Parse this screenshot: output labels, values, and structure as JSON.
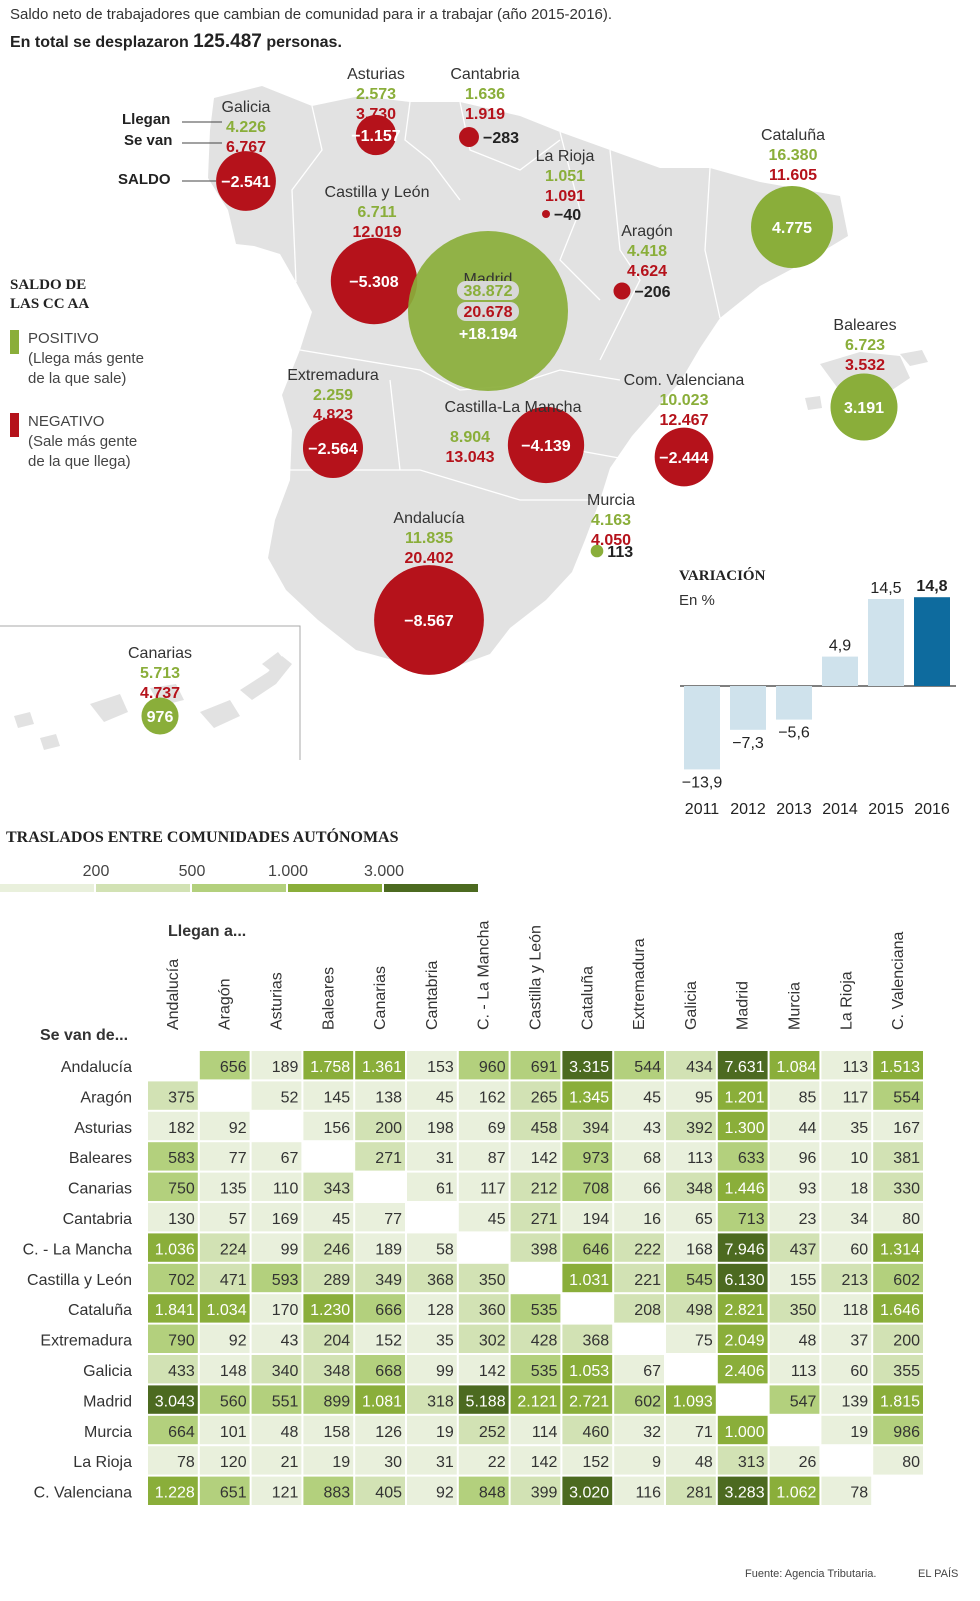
{
  "header": {
    "subtitle": "Saldo neto de trabajadores que cambian de comunidad para ir a trabajar (año 2015-2016).",
    "total_prefix": "En total se desplazaron",
    "total_value": "125.487",
    "total_suffix": "personas."
  },
  "colors": {
    "positive": "#8aae3a",
    "negative": "#b5121b",
    "land": "#e2e2e2",
    "bar_light": "#cfe2ec",
    "bar_highlight": "#0e6b9e"
  },
  "map_key": {
    "llegan": "Llegan",
    "se_van": "Se van",
    "saldo": "SALDO"
  },
  "legend": {
    "title_line1": "SALDO DE",
    "title_line2": "LAS CC AA",
    "positive_lines": [
      "POSITIVO",
      "(Llega más gente",
      "de la que sale)"
    ],
    "negative_lines": [
      "NEGATIVO",
      "(Sale más gente",
      "de la que llega)"
    ]
  },
  "regions": [
    {
      "name": "Galicia",
      "in": "4.226",
      "out": "6.767",
      "saldo": "−2.541",
      "value": -2541
    },
    {
      "name": "Asturias",
      "in": "2.573",
      "out": "3.730",
      "saldo": "−1.157",
      "value": -1157
    },
    {
      "name": "Cantabria",
      "in": "1.636",
      "out": "1.919",
      "saldo": "−283",
      "value": -283
    },
    {
      "name": "La Rioja",
      "in": "1.051",
      "out": "1.091",
      "saldo": "−40",
      "value": -40
    },
    {
      "name": "Cataluña",
      "in": "16.380",
      "out": "11.605",
      "saldo": "4.775",
      "value": 4775
    },
    {
      "name": "Castilla y León",
      "in": "6.711",
      "out": "12.019",
      "saldo": "−5.308",
      "value": -5308
    },
    {
      "name": "Aragón",
      "in": "4.418",
      "out": "4.624",
      "saldo": "−206",
      "value": -206
    },
    {
      "name": "Madrid",
      "in": "38.872",
      "out": "20.678",
      "saldo": "+18.194",
      "value": 18194
    },
    {
      "name": "Baleares",
      "in": "6.723",
      "out": "3.532",
      "saldo": "3.191",
      "value": 3191
    },
    {
      "name": "Extremadura",
      "in": "2.259",
      "out": "4.823",
      "saldo": "−2.564",
      "value": -2564
    },
    {
      "name": "Castilla-La Mancha",
      "in": "8.904",
      "out": "13.043",
      "saldo": "−4.139",
      "value": -4139
    },
    {
      "name": "Com. Valenciana",
      "in": "10.023",
      "out": "12.467",
      "saldo": "−2.444",
      "value": -2444
    },
    {
      "name": "Murcia",
      "in": "4.163",
      "out": "4.050",
      "saldo": "113",
      "value": 113
    },
    {
      "name": "Andalucía",
      "in": "11.835",
      "out": "20.402",
      "saldo": "−8.567",
      "value": -8567
    },
    {
      "name": "Canarias",
      "in": "5.713",
      "out": "4.737",
      "saldo": "976",
      "value": 976
    }
  ],
  "variation": {
    "title": "VARIACIÓN",
    "subtitle": "En %"
  },
  "scale": {
    "title": "TRASLADOS ENTRE COMUNIDADES AUTÓNOMAS",
    "labels": [
      "200",
      "500",
      "1.000",
      "3.000"
    ],
    "colors": [
      "#e9f0dc",
      "#d2e2b4",
      "#b3d07d",
      "#8aae3a",
      "#4c6a20"
    ]
  },
  "matrix": {
    "col_header": "Llegan a...",
    "row_header": "Se van de...",
    "regions": [
      "Andalucía",
      "Aragón",
      "Asturias",
      "Baleares",
      "Canarias",
      "Cantabria",
      "C. - La Mancha",
      "Castilla y León",
      "Cataluña",
      "Extremadura",
      "Galicia",
      "Madrid",
      "Murcia",
      "La Rioja",
      "C. Valenciana"
    ],
    "rows": [
      [
        "",
        "656",
        "189",
        "1.758",
        "1.361",
        "153",
        "960",
        "691",
        "3.315",
        "544",
        "434",
        "7.631",
        "1.084",
        "113",
        "1.513"
      ],
      [
        "375",
        "",
        "52",
        "145",
        "138",
        "45",
        "162",
        "265",
        "1.345",
        "45",
        "95",
        "1.201",
        "85",
        "117",
        "554"
      ],
      [
        "182",
        "92",
        "",
        "156",
        "200",
        "198",
        "69",
        "458",
        "394",
        "43",
        "392",
        "1.300",
        "44",
        "35",
        "167"
      ],
      [
        "583",
        "77",
        "67",
        "",
        "271",
        "31",
        "87",
        "142",
        "973",
        "68",
        "113",
        "633",
        "96",
        "10",
        "381"
      ],
      [
        "750",
        "135",
        "110",
        "343",
        "",
        "61",
        "117",
        "212",
        "708",
        "66",
        "348",
        "1.446",
        "93",
        "18",
        "330"
      ],
      [
        "130",
        "57",
        "169",
        "45",
        "77",
        "",
        "45",
        "271",
        "194",
        "16",
        "65",
        "713",
        "23",
        "34",
        "80"
      ],
      [
        "1.036",
        "224",
        "99",
        "246",
        "189",
        "58",
        "",
        "398",
        "646",
        "222",
        "168",
        "7.946",
        "437",
        "60",
        "1.314"
      ],
      [
        "702",
        "471",
        "593",
        "289",
        "349",
        "368",
        "350",
        "",
        "1.031",
        "221",
        "545",
        "6.130",
        "155",
        "213",
        "602"
      ],
      [
        "1.841",
        "1.034",
        "170",
        "1.230",
        "666",
        "128",
        "360",
        "535",
        "",
        "208",
        "498",
        "2.821",
        "350",
        "118",
        "1.646"
      ],
      [
        "790",
        "92",
        "43",
        "204",
        "152",
        "35",
        "302",
        "428",
        "368",
        "",
        "75",
        "2.049",
        "48",
        "37",
        "200"
      ],
      [
        "433",
        "148",
        "340",
        "348",
        "668",
        "99",
        "142",
        "535",
        "1.053",
        "67",
        "",
        "2.406",
        "113",
        "60",
        "355"
      ],
      [
        "3.043",
        "560",
        "551",
        "899",
        "1.081",
        "318",
        "5.188",
        "2.121",
        "2.721",
        "602",
        "1.093",
        "",
        "547",
        "139",
        "1.815"
      ],
      [
        "664",
        "101",
        "48",
        "158",
        "126",
        "19",
        "252",
        "114",
        "460",
        "32",
        "71",
        "1.000",
        "",
        "19",
        "986"
      ],
      [
        "78",
        "120",
        "21",
        "19",
        "30",
        "31",
        "22",
        "142",
        "152",
        "9",
        "48",
        "313",
        "26",
        "",
        "80"
      ],
      [
        "1.228",
        "651",
        "121",
        "883",
        "405",
        "92",
        "848",
        "399",
        "3.020",
        "116",
        "281",
        "3.283",
        "1.062",
        "78",
        ""
      ]
    ]
  },
  "chart_data": [
    {
      "type": "bar",
      "title": "VARIACIÓN",
      "subtitle": "En %",
      "categories": [
        "2011",
        "2012",
        "2013",
        "2014",
        "2015",
        "2016"
      ],
      "values": [
        -13.9,
        -7.3,
        -5.6,
        4.9,
        14.5,
        14.8
      ],
      "value_labels": [
        "−13,9",
        "−7,3",
        "−5,6",
        "4,9",
        "14,5",
        "14,8"
      ],
      "ylim": [
        -16,
        16
      ]
    },
    {
      "type": "heatmap",
      "title": "TRASLADOS ENTRE COMUNIDADES AUTÓNOMAS",
      "xlabel": "Llegan a...",
      "ylabel": "Se van de...",
      "legend_thresholds": [
        200,
        500,
        1000,
        3000
      ]
    }
  ],
  "footer": {
    "source": "Fuente: Agencia Tributaria.",
    "brand": "EL PAÍS"
  }
}
